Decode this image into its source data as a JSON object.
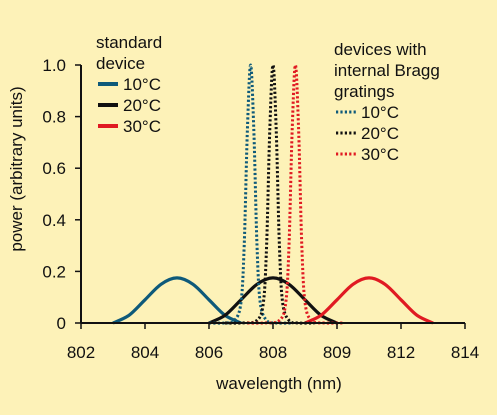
{
  "chart_data": {
    "type": "line",
    "xlabel": "wavelength (nm)",
    "ylabel": "power (arbitrary units)",
    "xlim": [
      802,
      814
    ],
    "ylim": [
      0,
      1.0
    ],
    "x_ticks": [
      "802",
      "804",
      "806",
      "808",
      "809",
      "812",
      "814"
    ],
    "y_ticks": [
      "0",
      "0.2",
      "0.4",
      "0.6",
      "0.8",
      "1.0"
    ],
    "grid": false,
    "legend_groups": [
      {
        "title_lines": [
          "standard",
          "device"
        ],
        "line_style": "solid",
        "placement": "top-left",
        "entries": [
          "10°C",
          "20°C",
          "30°C"
        ]
      },
      {
        "title_lines": [
          "devices with",
          "internal Bragg",
          "gratings"
        ],
        "line_style": "dotted",
        "placement": "top-right",
        "entries": [
          "10°C",
          "20°C",
          "30°C"
        ]
      }
    ],
    "series": [
      {
        "group": "standard device",
        "name": "10°C",
        "style": "solid",
        "color": "#0e5a7a",
        "x": [
          803.0,
          803.5,
          804.0,
          804.5,
          805.0,
          805.5,
          806.0,
          806.5,
          807.0
        ],
        "y": [
          0.0,
          0.03,
          0.09,
          0.15,
          0.175,
          0.15,
          0.09,
          0.03,
          0.0
        ]
      },
      {
        "group": "standard device",
        "name": "20°C",
        "style": "solid",
        "color": "#111111",
        "x": [
          806.0,
          806.5,
          807.0,
          807.5,
          808.0,
          808.5,
          809.0,
          809.5,
          810.0
        ],
        "y": [
          0.0,
          0.03,
          0.09,
          0.15,
          0.175,
          0.15,
          0.09,
          0.03,
          0.0
        ]
      },
      {
        "group": "standard device",
        "name": "30°C",
        "style": "solid",
        "color": "#e01a22",
        "x": [
          809.0,
          809.5,
          810.0,
          810.5,
          811.0,
          811.5,
          812.0,
          812.5,
          813.0
        ],
        "y": [
          0.0,
          0.03,
          0.09,
          0.15,
          0.175,
          0.15,
          0.09,
          0.03,
          0.0
        ]
      },
      {
        "group": "devices with internal Bragg gratings",
        "name": "10°C",
        "style": "dotted",
        "color": "#0e5a7a",
        "x": [
          806.0,
          806.5,
          806.8,
          807.0,
          807.1,
          807.2,
          807.3,
          807.4,
          807.5,
          807.6,
          807.8,
          808.1,
          808.6
        ],
        "y": [
          0.0,
          0.0,
          0.01,
          0.08,
          0.3,
          0.75,
          1.0,
          0.75,
          0.3,
          0.08,
          0.01,
          0.0,
          0.0
        ]
      },
      {
        "group": "devices with internal Bragg gratings",
        "name": "20°C",
        "style": "dotted",
        "color": "#111111",
        "x": [
          806.5,
          807.0,
          807.5,
          807.7,
          807.8,
          807.9,
          808.0,
          808.1,
          808.2,
          808.3,
          808.5,
          808.8,
          809.3
        ],
        "y": [
          0.0,
          0.0,
          0.01,
          0.08,
          0.3,
          0.75,
          1.0,
          0.75,
          0.3,
          0.08,
          0.01,
          0.0,
          0.0
        ]
      },
      {
        "group": "devices with internal Bragg gratings",
        "name": "30°C",
        "style": "dotted",
        "color": "#e01a22",
        "x": [
          807.2,
          807.7,
          808.2,
          808.4,
          808.5,
          808.6,
          808.7,
          808.8,
          808.9,
          809.0,
          809.2,
          809.6,
          810.2
        ],
        "y": [
          0.0,
          0.0,
          0.01,
          0.08,
          0.3,
          0.75,
          1.0,
          0.75,
          0.3,
          0.08,
          0.01,
          0.0,
          0.0
        ]
      }
    ]
  }
}
